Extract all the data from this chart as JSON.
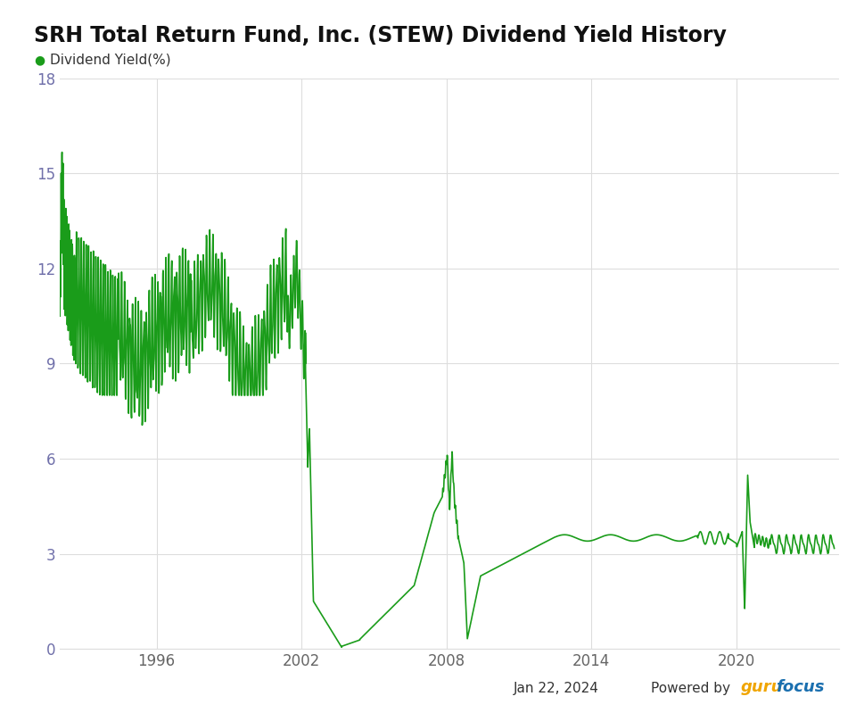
{
  "title": "SRH Total Return Fund, Inc. (STEW) Dividend Yield History",
  "legend_label": "Dividend Yield(%)",
  "line_color": "#1a9c1a",
  "background_color": "#ffffff",
  "plot_bg_color": "#ffffff",
  "grid_color": "#dddddd",
  "tick_color": "#7070aa",
  "xlabel_color": "#666666",
  "ylim": [
    0,
    18
  ],
  "yticks": [
    0,
    3,
    6,
    9,
    12,
    15,
    18
  ],
  "xticks_years": [
    1996,
    2002,
    2008,
    2014,
    2020
  ],
  "date_label": "Jan 22, 2024",
  "powered_by": "Powered by ",
  "guru_text": "guru",
  "focus_text": "focus",
  "guru_color": "#f0a500",
  "focus_color": "#1a6faf",
  "title_fontsize": 17,
  "legend_fontsize": 11,
  "tick_fontsize": 12
}
